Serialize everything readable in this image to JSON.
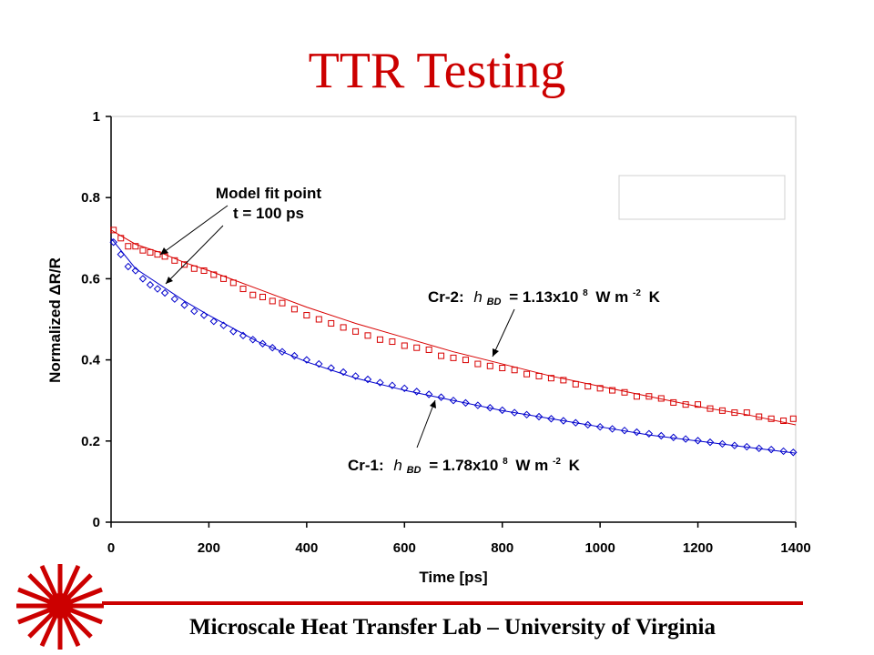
{
  "slide": {
    "title": "TTR Testing",
    "footer": "Microscale Heat Transfer Lab – University of Virginia"
  },
  "colors": {
    "title": "#cc0000",
    "series_red": "#d80000",
    "series_blue": "#0000cc",
    "accent": "#cc0000"
  },
  "chart_data": {
    "type": "scatter",
    "xlabel": "Time [ps]",
    "ylabel": "Normalized ΔR/R",
    "xlim": [
      0,
      1400
    ],
    "ylim": [
      0,
      1
    ],
    "xticks": [
      "0",
      "200",
      "400",
      "600",
      "800",
      "1000",
      "1200",
      "1400"
    ],
    "yticks": [
      "0",
      "0.2",
      "0.4",
      "0.6",
      "0.8",
      "1"
    ],
    "grid": false,
    "series": [
      {
        "color": "#d80000",
        "marker": "square",
        "x": [
          5,
          20,
          35,
          50,
          65,
          80,
          95,
          110,
          130,
          150,
          170,
          190,
          210,
          230,
          250,
          270,
          290,
          310,
          330,
          350,
          375,
          400,
          425,
          450,
          475,
          500,
          525,
          550,
          575,
          600,
          625,
          650,
          675,
          700,
          725,
          750,
          775,
          800,
          825,
          850,
          875,
          900,
          925,
          950,
          975,
          1000,
          1025,
          1050,
          1075,
          1100,
          1125,
          1150,
          1175,
          1200,
          1225,
          1250,
          1275,
          1300,
          1325,
          1350,
          1375,
          1395
        ],
        "y": [
          0.72,
          0.7,
          0.68,
          0.68,
          0.67,
          0.665,
          0.66,
          0.655,
          0.645,
          0.635,
          0.625,
          0.62,
          0.61,
          0.6,
          0.59,
          0.575,
          0.56,
          0.555,
          0.545,
          0.54,
          0.525,
          0.51,
          0.5,
          0.49,
          0.48,
          0.47,
          0.46,
          0.45,
          0.445,
          0.435,
          0.43,
          0.425,
          0.41,
          0.405,
          0.4,
          0.39,
          0.385,
          0.38,
          0.375,
          0.365,
          0.36,
          0.355,
          0.35,
          0.34,
          0.335,
          0.33,
          0.325,
          0.32,
          0.31,
          0.31,
          0.305,
          0.295,
          0.29,
          0.29,
          0.28,
          0.275,
          0.27,
          0.27,
          0.26,
          0.255,
          0.25,
          0.255
        ]
      },
      {
        "color": "#0000cc",
        "marker": "diamond",
        "x": [
          5,
          20,
          35,
          50,
          65,
          80,
          95,
          110,
          130,
          150,
          170,
          190,
          210,
          230,
          250,
          270,
          290,
          310,
          330,
          350,
          375,
          400,
          425,
          450,
          475,
          500,
          525,
          550,
          575,
          600,
          625,
          650,
          675,
          700,
          725,
          750,
          775,
          800,
          825,
          850,
          875,
          900,
          925,
          950,
          975,
          1000,
          1025,
          1050,
          1075,
          1100,
          1125,
          1150,
          1175,
          1200,
          1225,
          1250,
          1275,
          1300,
          1325,
          1350,
          1375,
          1395
        ],
        "y": [
          0.69,
          0.66,
          0.63,
          0.62,
          0.6,
          0.585,
          0.575,
          0.565,
          0.55,
          0.535,
          0.52,
          0.51,
          0.495,
          0.485,
          0.47,
          0.46,
          0.45,
          0.44,
          0.43,
          0.42,
          0.41,
          0.4,
          0.39,
          0.38,
          0.37,
          0.36,
          0.352,
          0.344,
          0.337,
          0.33,
          0.322,
          0.315,
          0.308,
          0.3,
          0.294,
          0.288,
          0.282,
          0.276,
          0.27,
          0.265,
          0.26,
          0.255,
          0.25,
          0.245,
          0.24,
          0.235,
          0.23,
          0.226,
          0.222,
          0.218,
          0.213,
          0.209,
          0.205,
          0.201,
          0.197,
          0.193,
          0.189,
          0.186,
          0.182,
          0.179,
          0.175,
          0.172
        ]
      }
    ],
    "fits": [
      {
        "color": "#d80000",
        "x": [
          0,
          50,
          100,
          150,
          200,
          300,
          400,
          500,
          600,
          700,
          800,
          900,
          1000,
          1100,
          1200,
          1300,
          1400
        ],
        "y": [
          0.72,
          0.685,
          0.665,
          0.64,
          0.62,
          0.575,
          0.53,
          0.49,
          0.455,
          0.42,
          0.39,
          0.36,
          0.335,
          0.31,
          0.285,
          0.265,
          0.24
        ]
      },
      {
        "color": "#0000cc",
        "x": [
          0,
          50,
          100,
          150,
          200,
          300,
          400,
          500,
          600,
          700,
          800,
          900,
          1000,
          1100,
          1200,
          1300,
          1400
        ],
        "y": [
          0.7,
          0.625,
          0.585,
          0.545,
          0.51,
          0.445,
          0.395,
          0.355,
          0.325,
          0.3,
          0.275,
          0.255,
          0.235,
          0.215,
          0.2,
          0.185,
          0.17
        ]
      }
    ],
    "annotations": {
      "fit_point_line1": "Model fit point",
      "fit_point_line2": "t = 100 ps",
      "cr2_prefix": "Cr-2:",
      "cr1_prefix": "Cr-1:",
      "h_symbol": "h",
      "h_subscript": "BD",
      "cr2_value": "= 1.13x10",
      "cr1_value": "= 1.78x10",
      "exponent": "8",
      "unit_prefix": "W m",
      "unit_exponent": "-2",
      "unit_suffix": "K"
    }
  }
}
